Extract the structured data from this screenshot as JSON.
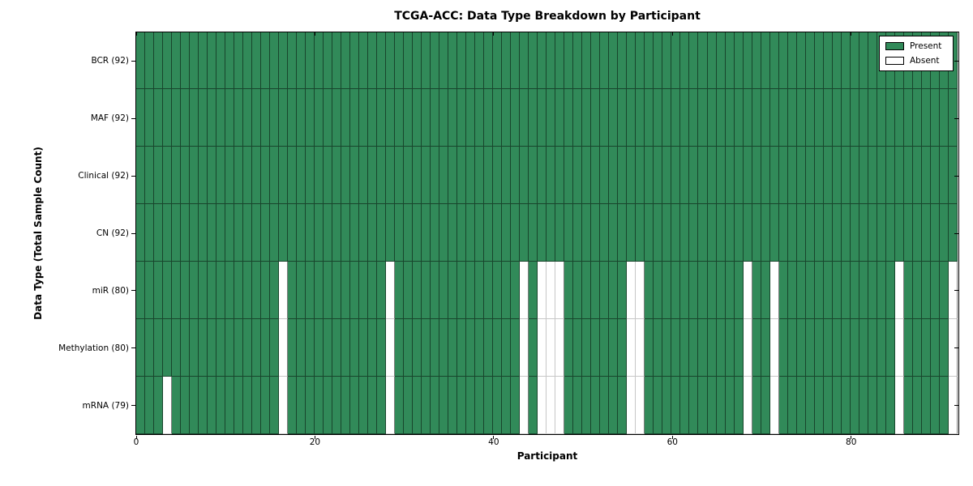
{
  "title": "TCGA-ACC: Data Type Breakdown by Participant",
  "chart_data": {
    "type": "heatmap",
    "title": "TCGA-ACC: Data Type Breakdown by Participant",
    "xlabel": "Participant",
    "ylabel": "Data Type (Total Sample Count)",
    "n_participants": 92,
    "xlim": [
      0,
      92
    ],
    "x_ticks": [
      0,
      20,
      40,
      60,
      80
    ],
    "grid": false,
    "rows": [
      {
        "name": "BCR",
        "label": "BCR (92)",
        "present_count": 92,
        "absent_count": 0,
        "absent_participants": []
      },
      {
        "name": "MAF",
        "label": "MAF (92)",
        "present_count": 92,
        "absent_count": 0,
        "absent_participants": []
      },
      {
        "name": "Clinical",
        "label": "Clinical (92)",
        "present_count": 92,
        "absent_count": 0,
        "absent_participants": []
      },
      {
        "name": "CN",
        "label": "CN (92)",
        "present_count": 92,
        "absent_count": 0,
        "absent_participants": []
      },
      {
        "name": "miR",
        "label": "miR (80)",
        "present_count": 80,
        "absent_count": 12,
        "absent_participants": [
          16,
          28,
          43,
          45,
          46,
          47,
          55,
          56,
          68,
          71,
          85,
          91
        ]
      },
      {
        "name": "Methylation",
        "label": "Methylation (80)",
        "present_count": 80,
        "absent_count": 12,
        "absent_participants": [
          16,
          28,
          43,
          45,
          46,
          47,
          55,
          56,
          68,
          71,
          85,
          91
        ]
      },
      {
        "name": "mRNA",
        "label": "mRNA (79)",
        "present_count": 79,
        "absent_count": 13,
        "absent_participants": [
          3,
          16,
          28,
          43,
          45,
          46,
          47,
          55,
          56,
          68,
          71,
          85,
          91
        ]
      }
    ],
    "legend": {
      "position": "upper right",
      "entries": [
        {
          "label": "Present",
          "color": "#318a59"
        },
        {
          "label": "Absent",
          "color": "#ffffff"
        }
      ]
    },
    "colors": {
      "present": "#318a59",
      "absent": "#ffffff",
      "cell_border_dark": "rgba(0,0,0,0.5)",
      "cell_border_light": "rgba(0,0,0,0.22)",
      "axis": "#000000"
    }
  }
}
